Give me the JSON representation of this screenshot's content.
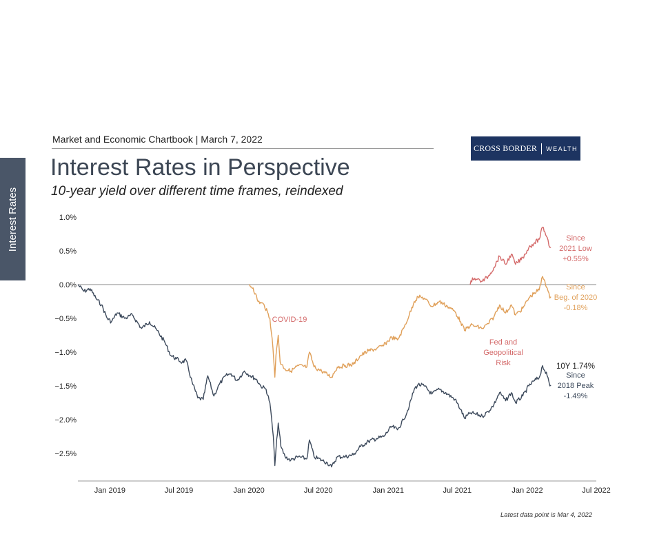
{
  "sidebar": {
    "tab_label": "Interest Rates"
  },
  "header": {
    "chartbook_line": "Market and Economic Chartbook | March 7, 2022",
    "logo_left": "CROSS BORDER",
    "logo_right": "WEALTH",
    "title": "Interest Rates in Perspective",
    "subtitle": "10-year yield over different time frames, reindexed"
  },
  "footnote": "Latest data point is Mar 4, 2022",
  "colors": {
    "navy": "#3d4a5c",
    "orange": "#e0a05a",
    "red": "#d46a6a",
    "tab": "#4a5668",
    "logo": "#1d3461"
  },
  "chart_data": {
    "type": "line",
    "title": "Interest Rates in Perspective",
    "subtitle": "10-year yield over different time frames, reindexed",
    "xlabel": "",
    "ylabel": "",
    "ylim": [
      -3.0,
      1.0
    ],
    "xlim": [
      "2018-10-09",
      "2022-07-01"
    ],
    "y_ticks": [
      1.0,
      0.5,
      0.0,
      -0.5,
      -1.0,
      -1.5,
      -2.0,
      -2.5
    ],
    "y_tick_labels": [
      "1.0%",
      "0.5%",
      "0.0%",
      "−0.5%",
      "−1.0%",
      "−1.5%",
      "−2.0%",
      "−2.5%"
    ],
    "x_ticks": [
      "2019-01-01",
      "2019-07-01",
      "2020-01-01",
      "2020-07-01",
      "2021-01-01",
      "2021-07-01",
      "2022-01-01",
      "2022-07-01"
    ],
    "x_tick_labels": [
      "Jan 2019",
      "Jul 2019",
      "Jan 2020",
      "Jul 2020",
      "Jan 2021",
      "Jul 2021",
      "Jan 2022",
      "Jul 2022"
    ],
    "grid": false,
    "series": [
      {
        "name": "Since 2018 Peak",
        "color": "#3d4a5c",
        "points": [
          [
            "2018-10-09",
            0.0
          ],
          [
            "2018-10-25",
            -0.1
          ],
          [
            "2018-11-10",
            -0.06
          ],
          [
            "2018-11-25",
            -0.2
          ],
          [
            "2018-12-10",
            -0.3
          ],
          [
            "2018-12-25",
            -0.5
          ],
          [
            "2019-01-05",
            -0.55
          ],
          [
            "2019-01-20",
            -0.42
          ],
          [
            "2019-02-10",
            -0.5
          ],
          [
            "2019-03-01",
            -0.45
          ],
          [
            "2019-03-25",
            -0.65
          ],
          [
            "2019-04-15",
            -0.55
          ],
          [
            "2019-05-05",
            -0.68
          ],
          [
            "2019-05-25",
            -0.85
          ],
          [
            "2019-06-10",
            -1.05
          ],
          [
            "2019-06-25",
            -1.1
          ],
          [
            "2019-07-10",
            -1.15
          ],
          [
            "2019-07-20",
            -1.12
          ],
          [
            "2019-08-05",
            -1.45
          ],
          [
            "2019-08-20",
            -1.68
          ],
          [
            "2019-09-03",
            -1.7
          ],
          [
            "2019-09-15",
            -1.35
          ],
          [
            "2019-10-01",
            -1.65
          ],
          [
            "2019-10-15",
            -1.48
          ],
          [
            "2019-11-01",
            -1.35
          ],
          [
            "2019-11-15",
            -1.32
          ],
          [
            "2019-12-01",
            -1.42
          ],
          [
            "2019-12-20",
            -1.28
          ],
          [
            "2020-01-05",
            -1.35
          ],
          [
            "2020-01-20",
            -1.4
          ],
          [
            "2020-02-01",
            -1.5
          ],
          [
            "2020-02-15",
            -1.55
          ],
          [
            "2020-02-25",
            -1.75
          ],
          [
            "2020-03-05",
            -2.25
          ],
          [
            "2020-03-09",
            -2.68
          ],
          [
            "2020-03-12",
            -2.45
          ],
          [
            "2020-03-18",
            -2.05
          ],
          [
            "2020-03-25",
            -2.4
          ],
          [
            "2020-04-05",
            -2.55
          ],
          [
            "2020-04-20",
            -2.6
          ],
          [
            "2020-05-10",
            -2.55
          ],
          [
            "2020-06-01",
            -2.58
          ],
          [
            "2020-06-08",
            -2.3
          ],
          [
            "2020-06-20",
            -2.55
          ],
          [
            "2020-07-10",
            -2.6
          ],
          [
            "2020-07-25",
            -2.64
          ],
          [
            "2020-08-05",
            -2.7
          ],
          [
            "2020-08-20",
            -2.55
          ],
          [
            "2020-09-10",
            -2.55
          ],
          [
            "2020-10-01",
            -2.52
          ],
          [
            "2020-10-20",
            -2.4
          ],
          [
            "2020-11-10",
            -2.32
          ],
          [
            "2020-12-01",
            -2.28
          ],
          [
            "2020-12-20",
            -2.25
          ],
          [
            "2021-01-10",
            -2.1
          ],
          [
            "2021-01-25",
            -2.15
          ],
          [
            "2021-02-10",
            -2.0
          ],
          [
            "2021-02-25",
            -1.8
          ],
          [
            "2021-03-10",
            -1.55
          ],
          [
            "2021-03-20",
            -1.48
          ],
          [
            "2021-04-05",
            -1.5
          ],
          [
            "2021-04-25",
            -1.62
          ],
          [
            "2021-05-15",
            -1.55
          ],
          [
            "2021-06-05",
            -1.62
          ],
          [
            "2021-06-25",
            -1.7
          ],
          [
            "2021-07-10",
            -1.85
          ],
          [
            "2021-07-20",
            -1.98
          ],
          [
            "2021-08-05",
            -1.9
          ],
          [
            "2021-08-20",
            -1.92
          ],
          [
            "2021-09-05",
            -1.95
          ],
          [
            "2021-09-20",
            -1.88
          ],
          [
            "2021-10-05",
            -1.78
          ],
          [
            "2021-10-20",
            -1.6
          ],
          [
            "2021-11-05",
            -1.72
          ],
          [
            "2021-11-20",
            -1.6
          ],
          [
            "2021-12-01",
            -1.75
          ],
          [
            "2021-12-20",
            -1.65
          ],
          [
            "2022-01-05",
            -1.5
          ],
          [
            "2022-01-20",
            -1.42
          ],
          [
            "2022-02-01",
            -1.38
          ],
          [
            "2022-02-10",
            -1.2
          ],
          [
            "2022-02-16",
            -1.28
          ],
          [
            "2022-02-22",
            -1.35
          ],
          [
            "2022-03-01",
            -1.5
          ],
          [
            "2022-03-04",
            -1.49
          ]
        ]
      },
      {
        "name": "Since Beg. of 2020",
        "color": "#e0a05a",
        "points": [
          [
            "2020-01-01",
            0.0
          ],
          [
            "2020-01-12",
            -0.05
          ],
          [
            "2020-01-25",
            -0.25
          ],
          [
            "2020-02-10",
            -0.3
          ],
          [
            "2020-02-25",
            -0.5
          ],
          [
            "2020-03-02",
            -0.8
          ],
          [
            "2020-03-06",
            -1.1
          ],
          [
            "2020-03-09",
            -1.37
          ],
          [
            "2020-03-12",
            -1.05
          ],
          [
            "2020-03-18",
            -0.75
          ],
          [
            "2020-03-23",
            -1.15
          ],
          [
            "2020-04-05",
            -1.25
          ],
          [
            "2020-04-20",
            -1.28
          ],
          [
            "2020-05-10",
            -1.2
          ],
          [
            "2020-06-01",
            -1.22
          ],
          [
            "2020-06-08",
            -1.0
          ],
          [
            "2020-06-20",
            -1.22
          ],
          [
            "2020-07-10",
            -1.28
          ],
          [
            "2020-08-05",
            -1.37
          ],
          [
            "2020-08-20",
            -1.22
          ],
          [
            "2020-09-10",
            -1.2
          ],
          [
            "2020-10-01",
            -1.18
          ],
          [
            "2020-10-20",
            -1.05
          ],
          [
            "2020-11-10",
            -0.98
          ],
          [
            "2020-12-01",
            -0.95
          ],
          [
            "2020-12-20",
            -0.9
          ],
          [
            "2021-01-10",
            -0.78
          ],
          [
            "2021-01-25",
            -0.82
          ],
          [
            "2021-02-10",
            -0.65
          ],
          [
            "2021-02-25",
            -0.45
          ],
          [
            "2021-03-10",
            -0.25
          ],
          [
            "2021-03-20",
            -0.18
          ],
          [
            "2021-04-05",
            -0.2
          ],
          [
            "2021-04-25",
            -0.32
          ],
          [
            "2021-05-15",
            -0.25
          ],
          [
            "2021-06-05",
            -0.32
          ],
          [
            "2021-06-25",
            -0.4
          ],
          [
            "2021-07-10",
            -0.55
          ],
          [
            "2021-07-20",
            -0.68
          ],
          [
            "2021-08-05",
            -0.6
          ],
          [
            "2021-08-20",
            -0.62
          ],
          [
            "2021-09-05",
            -0.65
          ],
          [
            "2021-09-20",
            -0.58
          ],
          [
            "2021-10-05",
            -0.48
          ],
          [
            "2021-10-20",
            -0.3
          ],
          [
            "2021-11-05",
            -0.42
          ],
          [
            "2021-11-20",
            -0.3
          ],
          [
            "2021-12-01",
            -0.45
          ],
          [
            "2021-12-20",
            -0.35
          ],
          [
            "2022-01-05",
            -0.2
          ],
          [
            "2022-01-20",
            -0.12
          ],
          [
            "2022-02-01",
            -0.08
          ],
          [
            "2022-02-10",
            0.12
          ],
          [
            "2022-02-16",
            0.05
          ],
          [
            "2022-02-22",
            -0.05
          ],
          [
            "2022-03-01",
            -0.2
          ],
          [
            "2022-03-04",
            -0.18
          ]
        ]
      },
      {
        "name": "Since 2021 Low",
        "color": "#d46a6a",
        "points": [
          [
            "2021-08-04",
            0.0
          ],
          [
            "2021-08-10",
            0.1
          ],
          [
            "2021-08-20",
            0.08
          ],
          [
            "2021-09-05",
            0.05
          ],
          [
            "2021-09-20",
            0.12
          ],
          [
            "2021-10-05",
            0.25
          ],
          [
            "2021-10-20",
            0.42
          ],
          [
            "2021-11-05",
            0.3
          ],
          [
            "2021-11-20",
            0.45
          ],
          [
            "2021-12-01",
            0.3
          ],
          [
            "2021-12-20",
            0.4
          ],
          [
            "2022-01-05",
            0.55
          ],
          [
            "2022-01-20",
            0.62
          ],
          [
            "2022-02-01",
            0.67
          ],
          [
            "2022-02-10",
            0.85
          ],
          [
            "2022-02-16",
            0.78
          ],
          [
            "2022-02-22",
            0.7
          ],
          [
            "2022-03-01",
            0.55
          ],
          [
            "2022-03-04",
            0.55
          ]
        ]
      }
    ],
    "annotations": [
      {
        "id": "covid",
        "text": [
          "COVID-19"
        ],
        "color": "#d46a6a"
      },
      {
        "id": "fed",
        "text": [
          "Fed and",
          "Geopolitical",
          "Risk"
        ],
        "color": "#d46a6a"
      },
      {
        "id": "red_label",
        "text": [
          "Since",
          "2021 Low",
          "+0.55%"
        ],
        "color": "#d46a6a"
      },
      {
        "id": "orange_label",
        "text": [
          "Since",
          "Beg. of 2020",
          "-0.18%"
        ],
        "color": "#e0a05a"
      },
      {
        "id": "navy_head",
        "text": [
          "10Y 1.74%"
        ],
        "color": "#1f1f1f"
      },
      {
        "id": "navy_label",
        "text": [
          "Since",
          "2018 Peak",
          "-1.49%"
        ],
        "color": "#3d4a5c"
      }
    ]
  }
}
